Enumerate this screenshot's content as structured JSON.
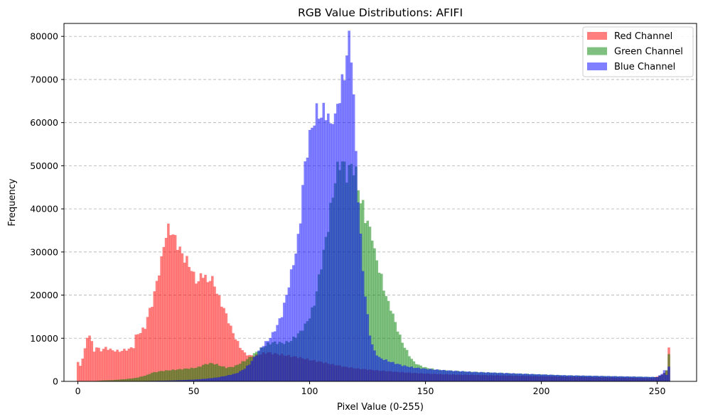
{
  "chart_data": {
    "type": "bar",
    "title": "RGB Value Distributions: AFIFI",
    "xlabel": "Pixel Value (0-255)",
    "ylabel": "Frequency",
    "xlim": [
      -6,
      267
    ],
    "ylim": [
      0,
      83000
    ],
    "xticks": [
      0,
      50,
      100,
      150,
      200,
      250
    ],
    "yticks": [
      0,
      10000,
      20000,
      30000,
      40000,
      50000,
      60000,
      70000,
      80000
    ],
    "grid": "y-dashed",
    "legend_position": "top-right",
    "bin_width": 1,
    "series": [
      {
        "name": "Red Channel",
        "color": "#ff0000",
        "opacity": 0.5,
        "points": [
          [
            0,
            4500
          ],
          [
            1,
            3500
          ],
          [
            2,
            5500
          ],
          [
            3,
            7500
          ],
          [
            4,
            10000
          ],
          [
            5,
            11000
          ],
          [
            6,
            9000
          ],
          [
            7,
            7000
          ],
          [
            8,
            8000
          ],
          [
            9,
            7500
          ],
          [
            10,
            7200
          ],
          [
            12,
            7800
          ],
          [
            15,
            7200
          ],
          [
            18,
            7000
          ],
          [
            20,
            7300
          ],
          [
            22,
            7500
          ],
          [
            24,
            8000
          ],
          [
            25,
            10500
          ],
          [
            27,
            11500
          ],
          [
            29,
            12500
          ],
          [
            30,
            15000
          ],
          [
            32,
            18000
          ],
          [
            34,
            23000
          ],
          [
            36,
            28000
          ],
          [
            37,
            31500
          ],
          [
            38,
            34000
          ],
          [
            39,
            35200
          ],
          [
            40,
            35000
          ],
          [
            41,
            34000
          ],
          [
            42,
            33000
          ],
          [
            44,
            30500
          ],
          [
            46,
            28500
          ],
          [
            47,
            28000
          ],
          [
            48,
            27000
          ],
          [
            49,
            26000
          ],
          [
            50,
            24500
          ],
          [
            51,
            23500
          ],
          [
            52,
            23000
          ],
          [
            53,
            24500
          ],
          [
            54,
            25000
          ],
          [
            55,
            24000
          ],
          [
            56,
            23000
          ],
          [
            57,
            24000
          ],
          [
            58,
            23500
          ],
          [
            59,
            22500
          ],
          [
            60,
            20500
          ],
          [
            62,
            18000
          ],
          [
            64,
            15500
          ],
          [
            66,
            12500
          ],
          [
            68,
            10000
          ],
          [
            70,
            8000
          ],
          [
            72,
            6500
          ],
          [
            74,
            6000
          ],
          [
            76,
            6000
          ],
          [
            78,
            6200
          ],
          [
            80,
            6500
          ],
          [
            82,
            6700
          ],
          [
            85,
            6400
          ],
          [
            90,
            6000
          ],
          [
            95,
            5600
          ],
          [
            100,
            5000
          ],
          [
            105,
            4500
          ],
          [
            110,
            3900
          ],
          [
            115,
            3400
          ],
          [
            120,
            3000
          ],
          [
            130,
            2500
          ],
          [
            140,
            2100
          ],
          [
            150,
            1800
          ],
          [
            160,
            1600
          ],
          [
            170,
            1500
          ],
          [
            180,
            1400
          ],
          [
            190,
            1300
          ],
          [
            200,
            1200
          ],
          [
            210,
            1100
          ],
          [
            220,
            1000
          ],
          [
            230,
            900
          ],
          [
            240,
            800
          ],
          [
            248,
            750
          ],
          [
            252,
            1500
          ],
          [
            254,
            2500
          ],
          [
            255,
            7600
          ]
        ]
      },
      {
        "name": "Green Channel",
        "color": "#008000",
        "opacity": 0.5,
        "points": [
          [
            0,
            0
          ],
          [
            5,
            0
          ],
          [
            8,
            100
          ],
          [
            10,
            200
          ],
          [
            15,
            300
          ],
          [
            20,
            500
          ],
          [
            25,
            800
          ],
          [
            28,
            1200
          ],
          [
            30,
            1500
          ],
          [
            32,
            2000
          ],
          [
            34,
            2200
          ],
          [
            36,
            2400
          ],
          [
            38,
            2500
          ],
          [
            40,
            2600
          ],
          [
            42,
            2700
          ],
          [
            44,
            2800
          ],
          [
            46,
            2900
          ],
          [
            48,
            3000
          ],
          [
            50,
            3100
          ],
          [
            52,
            3300
          ],
          [
            54,
            3800
          ],
          [
            56,
            4100
          ],
          [
            58,
            4200
          ],
          [
            60,
            3900
          ],
          [
            62,
            3500
          ],
          [
            64,
            3200
          ],
          [
            66,
            3300
          ],
          [
            68,
            3600
          ],
          [
            70,
            4200
          ],
          [
            72,
            4800
          ],
          [
            74,
            5500
          ],
          [
            76,
            6400
          ],
          [
            78,
            7200
          ],
          [
            80,
            8000
          ],
          [
            82,
            8700
          ],
          [
            84,
            9000
          ],
          [
            86,
            9000
          ],
          [
            88,
            8900
          ],
          [
            90,
            9000
          ],
          [
            92,
            9500
          ],
          [
            94,
            10500
          ],
          [
            96,
            11500
          ],
          [
            98,
            13000
          ],
          [
            100,
            15000
          ],
          [
            102,
            18000
          ],
          [
            104,
            24000
          ],
          [
            106,
            30000
          ],
          [
            108,
            36000
          ],
          [
            109,
            40000
          ],
          [
            110,
            43000
          ],
          [
            111,
            47000
          ],
          [
            112,
            49000
          ],
          [
            113,
            50500
          ],
          [
            114,
            51000
          ],
          [
            115,
            49500
          ],
          [
            116,
            48000
          ],
          [
            117,
            49000
          ],
          [
            118,
            50000
          ],
          [
            119,
            49500
          ],
          [
            120,
            48000
          ],
          [
            121,
            45000
          ],
          [
            122,
            42000
          ],
          [
            123,
            40500
          ],
          [
            124,
            38000
          ],
          [
            125,
            37000
          ],
          [
            126,
            35000
          ],
          [
            127,
            34000
          ],
          [
            128,
            30000
          ],
          [
            129,
            28000
          ],
          [
            130,
            26000
          ],
          [
            131,
            24000
          ],
          [
            132,
            21500
          ],
          [
            133,
            20000
          ],
          [
            134,
            18000
          ],
          [
            135,
            17000
          ],
          [
            136,
            15500
          ],
          [
            137,
            13500
          ],
          [
            138,
            12000
          ],
          [
            139,
            10500
          ],
          [
            140,
            9000
          ],
          [
            141,
            8000
          ],
          [
            142,
            7000
          ],
          [
            143,
            6000
          ],
          [
            145,
            4500
          ],
          [
            147,
            3800
          ],
          [
            150,
            3200
          ],
          [
            155,
            2700
          ],
          [
            160,
            2500
          ],
          [
            170,
            2200
          ],
          [
            180,
            2000
          ],
          [
            190,
            1800
          ],
          [
            200,
            1600
          ],
          [
            210,
            1400
          ],
          [
            220,
            1300
          ],
          [
            230,
            1200
          ],
          [
            240,
            1100
          ],
          [
            250,
            1000
          ],
          [
            252,
            1500
          ],
          [
            253,
            2000
          ],
          [
            254,
            2500
          ],
          [
            255,
            6500
          ]
        ]
      },
      {
        "name": "Blue Channel",
        "color": "#0000ff",
        "opacity": 0.5,
        "points": [
          [
            0,
            0
          ],
          [
            20,
            0
          ],
          [
            30,
            100
          ],
          [
            40,
            200
          ],
          [
            50,
            400
          ],
          [
            55,
            600
          ],
          [
            60,
            900
          ],
          [
            64,
            1300
          ],
          [
            68,
            1800
          ],
          [
            70,
            2300
          ],
          [
            72,
            3000
          ],
          [
            74,
            4000
          ],
          [
            76,
            5500
          ],
          [
            78,
            7000
          ],
          [
            80,
            8500
          ],
          [
            82,
            9500
          ],
          [
            84,
            11000
          ],
          [
            86,
            13000
          ],
          [
            88,
            15500
          ],
          [
            90,
            20000
          ],
          [
            92,
            25000
          ],
          [
            94,
            30000
          ],
          [
            95,
            33000
          ],
          [
            96,
            38000
          ],
          [
            97,
            45000
          ],
          [
            98,
            50000
          ],
          [
            99,
            54000
          ],
          [
            100,
            56500
          ],
          [
            101,
            59000
          ],
          [
            102,
            61000
          ],
          [
            103,
            62000
          ],
          [
            104,
            62500
          ],
          [
            105,
            61500
          ],
          [
            106,
            62500
          ],
          [
            107,
            63000
          ],
          [
            108,
            61000
          ],
          [
            109,
            59000
          ],
          [
            110,
            62000
          ],
          [
            111,
            60000
          ],
          [
            112,
            65000
          ],
          [
            113,
            66000
          ],
          [
            114,
            68500
          ],
          [
            115,
            72000
          ],
          [
            116,
            75500
          ],
          [
            117,
            79000
          ],
          [
            118,
            77000
          ],
          [
            119,
            65000
          ],
          [
            120,
            53000
          ],
          [
            121,
            43000
          ],
          [
            122,
            33000
          ],
          [
            123,
            26000
          ],
          [
            124,
            20000
          ],
          [
            125,
            15000
          ],
          [
            126,
            11000
          ],
          [
            127,
            8500
          ],
          [
            128,
            7000
          ],
          [
            130,
            5500
          ],
          [
            135,
            4500
          ],
          [
            140,
            3700
          ],
          [
            145,
            3200
          ],
          [
            150,
            2900
          ],
          [
            155,
            2700
          ],
          [
            160,
            2500
          ],
          [
            170,
            2200
          ],
          [
            180,
            2000
          ],
          [
            190,
            1800
          ],
          [
            200,
            1600
          ],
          [
            210,
            1400
          ],
          [
            220,
            1300
          ],
          [
            230,
            1200
          ],
          [
            240,
            1100
          ],
          [
            250,
            1000
          ],
          [
            252,
            1800
          ],
          [
            253,
            2500
          ],
          [
            254,
            1500
          ],
          [
            255,
            3500
          ]
        ]
      }
    ],
    "overlap_color": "#3c3c9c"
  }
}
